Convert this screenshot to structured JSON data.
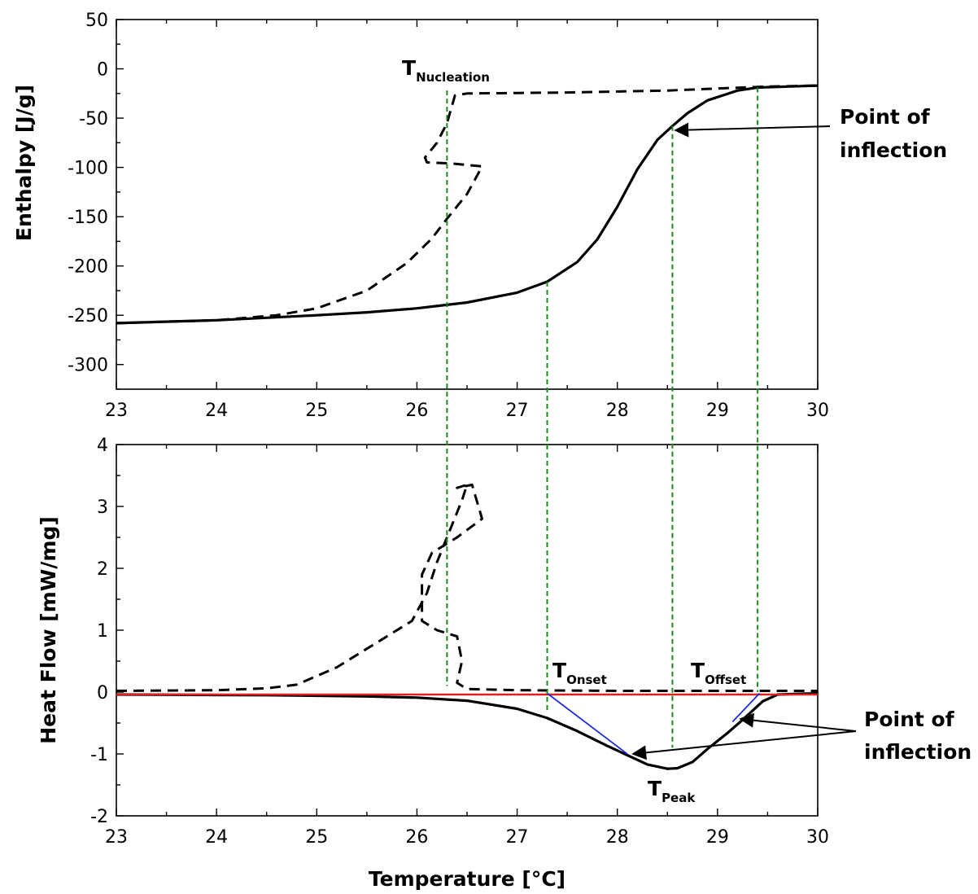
{
  "chart_data": [
    {
      "type": "line",
      "xlabel": "",
      "ylabel": "Enthalpy [J/g]",
      "xlim": [
        23,
        30
      ],
      "ylim": [
        -325,
        50
      ],
      "x_ticks": [
        "23",
        "24",
        "25",
        "26",
        "27",
        "28",
        "29",
        "30"
      ],
      "y_ticks": [
        "50",
        "0",
        "-50",
        "-100",
        "-150",
        "-200",
        "-250",
        "-300"
      ],
      "y_tick_values": [
        50,
        0,
        -50,
        -100,
        -150,
        -200,
        -250,
        -300
      ],
      "grid": false,
      "series": [
        {
          "style": "solid",
          "color": "#000000",
          "points": [
            [
              23.0,
              -258
            ],
            [
              24.0,
              -255
            ],
            [
              25.0,
              -250
            ],
            [
              25.5,
              -247
            ],
            [
              26.0,
              -243
            ],
            [
              26.5,
              -237
            ],
            [
              27.0,
              -227
            ],
            [
              27.3,
              -216
            ],
            [
              27.6,
              -196
            ],
            [
              27.8,
              -173
            ],
            [
              28.0,
              -140
            ],
            [
              28.2,
              -102
            ],
            [
              28.4,
              -72
            ],
            [
              28.55,
              -58
            ],
            [
              28.7,
              -45
            ],
            [
              28.9,
              -32
            ],
            [
              29.2,
              -22
            ],
            [
              29.4,
              -19
            ],
            [
              29.7,
              -18
            ],
            [
              30.0,
              -17
            ]
          ]
        },
        {
          "style": "dashed",
          "color": "#000000",
          "points": [
            [
              23.0,
              -258
            ],
            [
              24.0,
              -255
            ],
            [
              24.6,
              -250
            ],
            [
              25.0,
              -243
            ],
            [
              25.5,
              -225
            ],
            [
              25.9,
              -197
            ],
            [
              26.15,
              -172
            ],
            [
              26.3,
              -152
            ],
            [
              26.5,
              -127
            ],
            [
              26.65,
              -99
            ],
            [
              26.35,
              -96
            ],
            [
              26.1,
              -95
            ],
            [
              26.08,
              -90
            ],
            [
              26.2,
              -75
            ],
            [
              26.3,
              -55
            ],
            [
              26.38,
              -27
            ],
            [
              26.5,
              -25
            ],
            [
              27.5,
              -24
            ],
            [
              28.5,
              -22
            ],
            [
              29.0,
              -20
            ],
            [
              29.5,
              -18
            ],
            [
              30.0,
              -17
            ]
          ]
        }
      ],
      "annotations": [
        {
          "text": "T",
          "sub": "Nucleation"
        },
        {
          "text": "Point of inflection"
        }
      ]
    },
    {
      "type": "line",
      "xlabel": "Temperature [°C]",
      "ylabel": "Heat Flow [mW/mg]",
      "xlim": [
        23,
        30
      ],
      "ylim": [
        -2,
        4
      ],
      "x_ticks": [
        "23",
        "24",
        "25",
        "26",
        "27",
        "28",
        "29",
        "30"
      ],
      "y_ticks": [
        "4",
        "3",
        "2",
        "1",
        "0",
        "-1",
        "-2"
      ],
      "y_tick_values": [
        4,
        3,
        2,
        1,
        0,
        -1,
        -2
      ],
      "grid": false,
      "series": [
        {
          "style": "solid",
          "color": "#000000",
          "points": [
            [
              23.0,
              -0.04
            ],
            [
              24.5,
              -0.05
            ],
            [
              25.5,
              -0.07
            ],
            [
              26.0,
              -0.09
            ],
            [
              26.5,
              -0.14
            ],
            [
              27.0,
              -0.27
            ],
            [
              27.3,
              -0.42
            ],
            [
              27.6,
              -0.63
            ],
            [
              27.9,
              -0.87
            ],
            [
              28.1,
              -1.02
            ],
            [
              28.3,
              -1.17
            ],
            [
              28.5,
              -1.24
            ],
            [
              28.6,
              -1.23
            ],
            [
              28.75,
              -1.13
            ],
            [
              28.9,
              -0.92
            ],
            [
              29.1,
              -0.66
            ],
            [
              29.25,
              -0.45
            ],
            [
              29.45,
              -0.15
            ],
            [
              29.6,
              -0.04
            ],
            [
              30.0,
              -0.02
            ]
          ]
        },
        {
          "style": "dashed",
          "color": "#000000",
          "points": [
            [
              23.0,
              0.02
            ],
            [
              24.0,
              0.03
            ],
            [
              24.5,
              0.06
            ],
            [
              24.8,
              0.12
            ],
            [
              25.2,
              0.4
            ],
            [
              25.6,
              0.8
            ],
            [
              25.95,
              1.15
            ],
            [
              26.1,
              1.6
            ],
            [
              26.2,
              2.1
            ],
            [
              26.35,
              2.7
            ],
            [
              26.45,
              3.1
            ],
            [
              26.5,
              3.35
            ],
            [
              26.4,
              3.3
            ],
            [
              26.55,
              3.35
            ],
            [
              26.65,
              2.8
            ],
            [
              26.4,
              2.5
            ],
            [
              26.15,
              2.25
            ],
            [
              26.05,
              1.9
            ],
            [
              26.05,
              1.55
            ],
            [
              26.05,
              1.15
            ],
            [
              26.2,
              1.0
            ],
            [
              26.4,
              0.9
            ],
            [
              26.45,
              0.5
            ],
            [
              26.4,
              0.15
            ],
            [
              26.5,
              0.05
            ],
            [
              27.0,
              0.03
            ],
            [
              28.0,
              0.02
            ],
            [
              29.0,
              0.02
            ],
            [
              30.0,
              0.02
            ]
          ]
        },
        {
          "style": "baseline",
          "color": "#e0201b",
          "points": [
            [
              23.0,
              -0.04
            ],
            [
              30.0,
              -0.04
            ]
          ]
        },
        {
          "style": "tangent",
          "color": "#1d2ddb",
          "points": [
            [
              27.3,
              -0.02
            ],
            [
              28.1,
              -1.0
            ]
          ]
        },
        {
          "style": "tangent",
          "color": "#1d2ddb",
          "points": [
            [
              29.15,
              -0.48
            ],
            [
              29.42,
              -0.02
            ]
          ]
        }
      ],
      "annotations": [
        {
          "text": "T",
          "sub": "Onset"
        },
        {
          "text": "T",
          "sub": "Offset"
        },
        {
          "text": "T",
          "sub": "Peak"
        },
        {
          "text": "Point of inflection"
        }
      ]
    }
  ],
  "guides_x": [
    26.3,
    27.3,
    28.55,
    29.4
  ],
  "labels": {
    "nucleation_t": "T",
    "nucleation_sub": "Nucleation",
    "onset_t": "T",
    "onset_sub": "Onset",
    "offset_t": "T",
    "offset_sub": "Offset",
    "peak_t": "T",
    "peak_sub": "Peak",
    "inflection_top_line1": "Point of",
    "inflection_top_line2": "inflection",
    "inflection_bottom_line1": "Point of",
    "inflection_bottom_line2": "inflection"
  },
  "colors": {
    "guide": "#1a8a1a",
    "baseline": "#e0201b",
    "tangent": "#1d2ddb"
  }
}
